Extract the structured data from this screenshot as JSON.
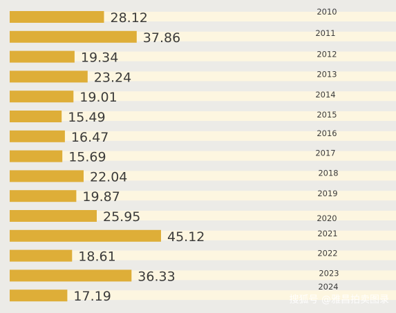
{
  "chart_data": {
    "type": "bar",
    "orientation": "horizontal",
    "categories": [
      "2010",
      "2011",
      "2012",
      "2013",
      "2014",
      "2015",
      "2016",
      "2017",
      "2018",
      "2019",
      "2020",
      "2021",
      "2022",
      "2023",
      "2024"
    ],
    "values": [
      28.12,
      37.86,
      19.34,
      23.24,
      19.01,
      15.49,
      16.47,
      15.69,
      22.04,
      19.87,
      25.95,
      45.12,
      18.61,
      36.33,
      17.19
    ],
    "title": "",
    "xlabel": "",
    "ylabel": "",
    "xlim": [
      0,
      45.12
    ],
    "grid": false,
    "legend": "none",
    "colors": {
      "bar": "#deae38",
      "band_light": "#fdf6e0",
      "band_dark": "#ecebe7",
      "text": "#3b3b3b"
    }
  },
  "watermark": "搜狐号 @雅昌拍卖图录"
}
